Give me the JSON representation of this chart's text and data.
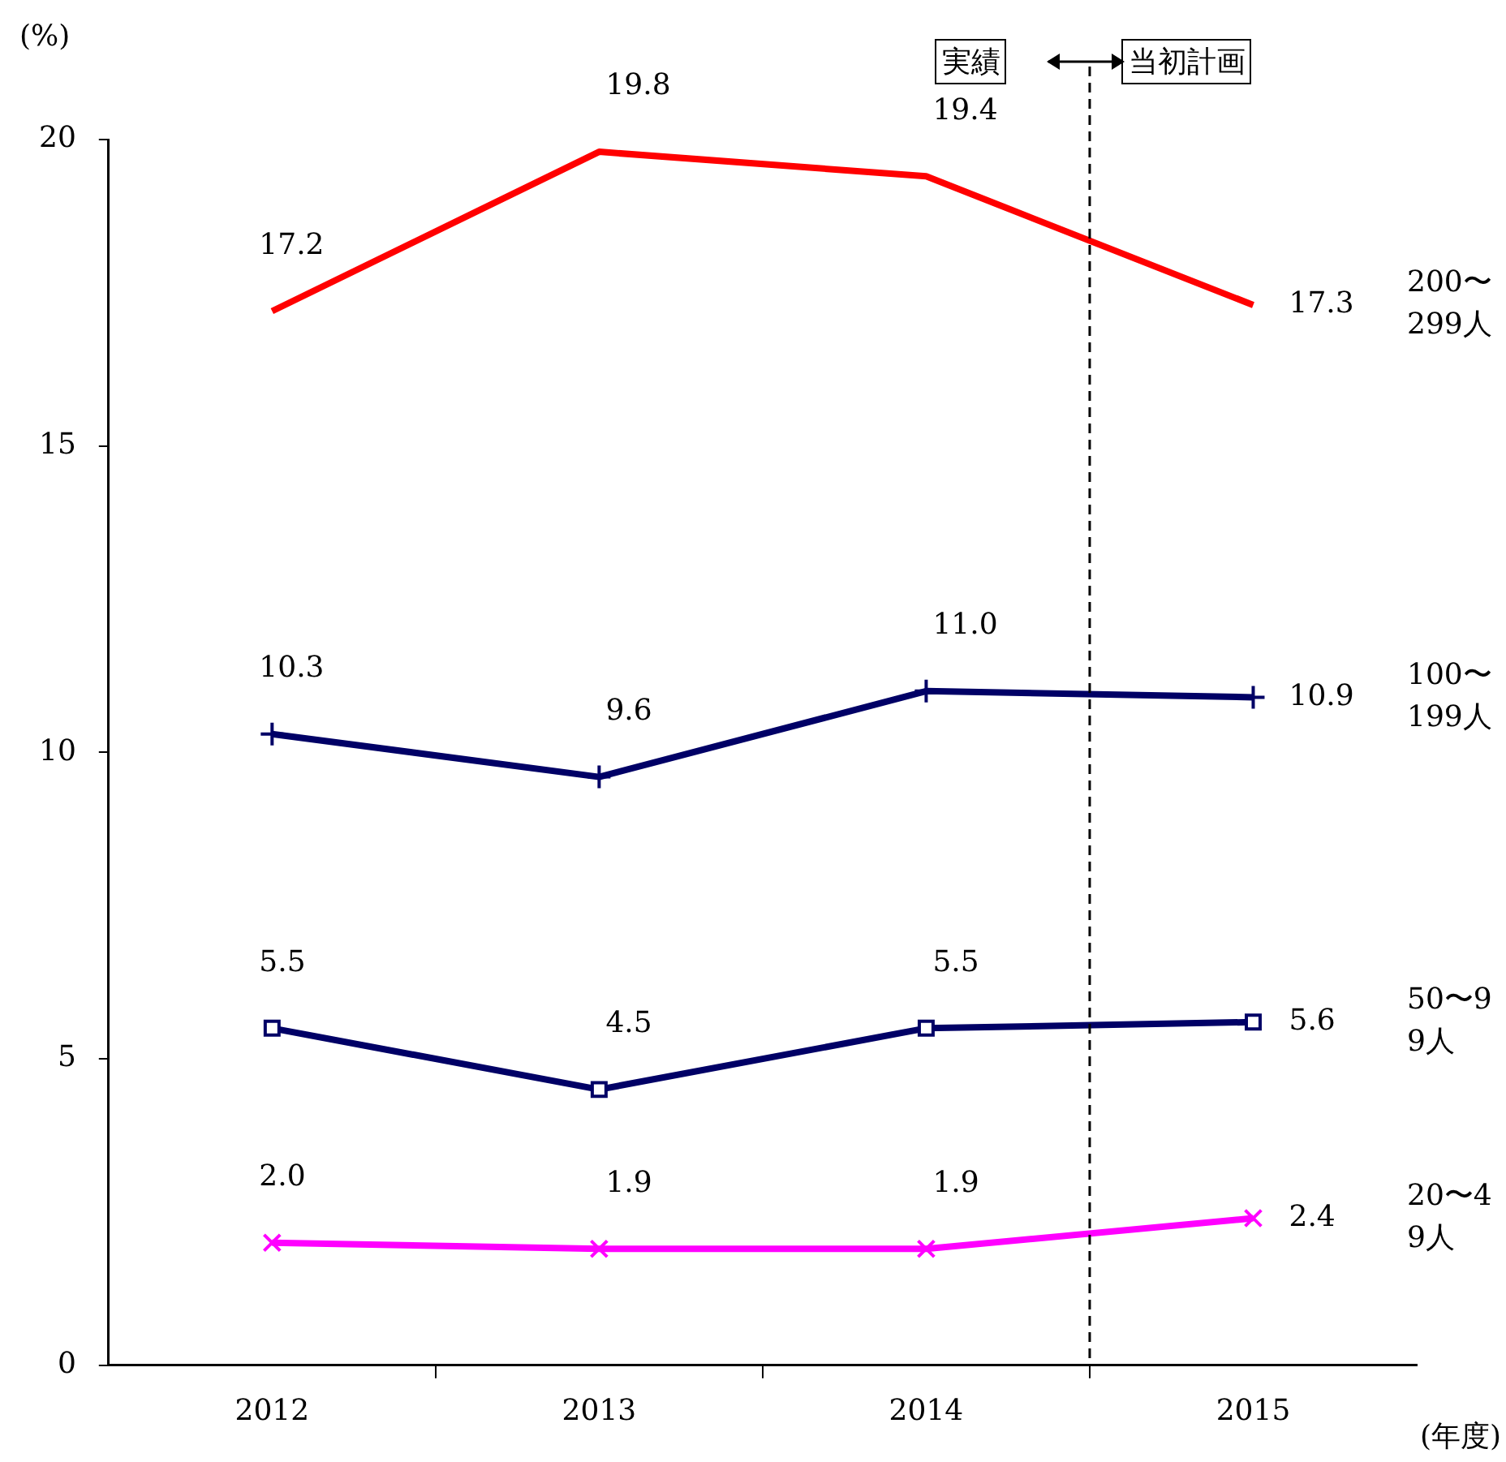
{
  "chart_data": {
    "type": "line",
    "ylabel": "(%)",
    "xlabel": "(年度)",
    "x": [
      2012,
      2013,
      2014,
      2015
    ],
    "xlim": [
      2011.5,
      2015.5
    ],
    "xticks": [
      2012,
      2013,
      2014,
      2015,
      {
        "value": 2012.5,
        "label": null
      },
      {
        "value": 2013.5,
        "label": null
      },
      {
        "value": 2014.5,
        "label": null
      }
    ],
    "ylim": [
      0,
      20
    ],
    "yticks": [
      0,
      5,
      10,
      15,
      20
    ],
    "grid": false,
    "legend": false,
    "line_style": "solid",
    "series": [
      {
        "name": "200〜299人",
        "color": "#ff0000",
        "marker": "none",
        "values": [
          17.2,
          19.8,
          19.4,
          17.3
        ],
        "value_labels": [
          "17.2",
          "19.8",
          "19.4",
          "17.3"
        ]
      },
      {
        "name": "100〜199人",
        "color": "#000066",
        "marker": "cross",
        "values": [
          10.3,
          9.6,
          11.0,
          10.9
        ],
        "value_labels": [
          "10.3",
          "9.6",
          "11.0",
          "10.9"
        ]
      },
      {
        "name": "50〜99人",
        "color": "#000066",
        "marker": "square",
        "values": [
          5.5,
          4.5,
          5.5,
          5.6
        ],
        "value_labels": [
          "5.5",
          "4.5",
          "5.5",
          "5.6"
        ]
      },
      {
        "name": "20〜49人",
        "color": "#ff00ff",
        "marker": "x",
        "values": [
          2.0,
          1.9,
          1.9,
          2.4
        ],
        "value_labels": [
          "2.0",
          "1.9",
          "1.9",
          "2.4"
        ]
      }
    ],
    "ref_lines": [
      {
        "axis": "x",
        "value": 2014.5,
        "color": "#000000",
        "line_style": "dashed"
      }
    ],
    "annotations": [
      "実績",
      "当初計画"
    ]
  }
}
